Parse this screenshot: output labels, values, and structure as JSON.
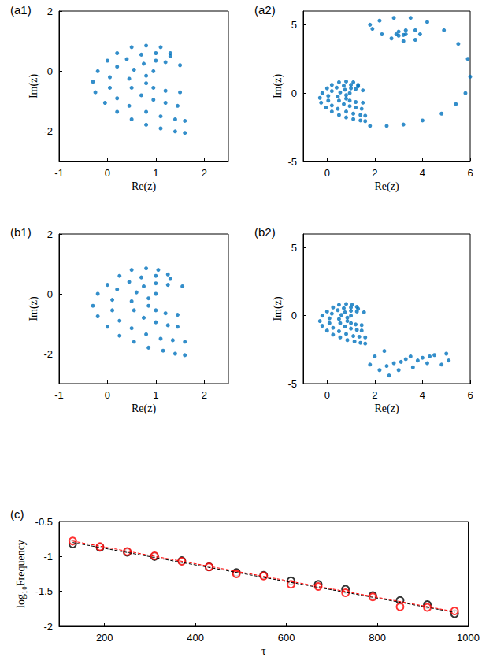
{
  "chart_data": [
    {
      "type": "scatter",
      "title": "(a1)",
      "x_label": "Re(z)",
      "y_label": "Im(z)",
      "xlim": [
        -1,
        2.5
      ],
      "ylim": [
        -3,
        2
      ],
      "xticks": [
        -1,
        0,
        1,
        2
      ],
      "yticks": [
        -2,
        0,
        2
      ],
      "series": [
        {
          "color": "#0072bd",
          "marker": "circle",
          "x": [
            1.3,
            1.1,
            0.8,
            0.5,
            0.2,
            0,
            -0.2,
            -0.3,
            -0.25,
            -0.05,
            0.2,
            0.5,
            0.8,
            1.1,
            1.4,
            1.6,
            1.5,
            1.3,
            1.0,
            0.7,
            0.4,
            0.2,
            0.05,
            0.05,
            0.2,
            0.45,
            0.8,
            1.1,
            1.4,
            1.6,
            1.2,
            1.0,
            0.75,
            0.55,
            0.45,
            0.5,
            0.7,
            0.95,
            1.2,
            1.45,
            0.95,
            0.8,
            0.8,
            0.95,
            1.2,
            1.5
          ],
          "values": [
            0.6,
            0.8,
            0.85,
            0.8,
            0.6,
            0.35,
            0,
            -0.35,
            -0.7,
            -1.05,
            -1.35,
            -1.6,
            -1.78,
            -1.9,
            -2.0,
            -2.05,
            0.2,
            0.5,
            0.6,
            0.55,
            0.4,
            0.15,
            -0.2,
            -0.55,
            -0.9,
            -1.15,
            -1.35,
            -1.5,
            -1.6,
            -1.65,
            0.3,
            0.35,
            0.25,
            0.05,
            -0.25,
            -0.55,
            -0.8,
            -0.95,
            -1.05,
            -1.15,
            0.0,
            -0.15,
            -0.4,
            -0.55,
            -0.65,
            -0.7
          ]
        }
      ]
    },
    {
      "type": "scatter",
      "title": "(a2)",
      "x_label": "Re(z)",
      "y_label": "Im(z)",
      "xlim": [
        -1,
        6
      ],
      "ylim": [
        -5,
        6
      ],
      "xticks": [
        0,
        2,
        4,
        6
      ],
      "yticks": [
        -5,
        0,
        5
      ],
      "series": [
        {
          "color": "#0072bd",
          "marker": "circle",
          "x": [
            1.3,
            1.1,
            0.8,
            0.5,
            0.2,
            0,
            -0.2,
            -0.3,
            -0.25,
            -0.05,
            0.2,
            0.5,
            0.8,
            1.1,
            1.4,
            1.6,
            1.5,
            1.3,
            1.0,
            0.7,
            0.4,
            0.2,
            0.05,
            0.05,
            0.2,
            0.45,
            0.8,
            1.1,
            1.4,
            1.6,
            1.2,
            1.0,
            0.75,
            0.55,
            0.45,
            0.5,
            0.7,
            0.95,
            1.2,
            1.45,
            0.95,
            0.8,
            0.8,
            0.95,
            1.2,
            1.5
          ],
          "values": [
            0.6,
            0.8,
            0.85,
            0.8,
            0.6,
            0.35,
            0,
            -0.35,
            -0.7,
            -1.05,
            -1.35,
            -1.6,
            -1.78,
            -1.9,
            -2.0,
            -2.05,
            0.2,
            0.5,
            0.6,
            0.55,
            0.4,
            0.15,
            -0.2,
            -0.55,
            -0.9,
            -1.15,
            -1.35,
            -1.5,
            -1.6,
            -1.65,
            0.3,
            0.35,
            0.25,
            0.05,
            -0.25,
            -0.55,
            -0.8,
            -0.95,
            -1.05,
            -1.15,
            0.0,
            -0.15,
            -0.4,
            -0.55,
            -0.65,
            -0.7
          ]
        },
        {
          "color": "#0072bd",
          "marker": "circle",
          "x": [
            1.8,
            2.5,
            3.2,
            4.0,
            4.8,
            5.4,
            5.8,
            6.0,
            5.9,
            5.5,
            4.9,
            4.2,
            3.5,
            2.8,
            2.2,
            1.8,
            1.9,
            2.3,
            2.7,
            3.2,
            3.7,
            3.9,
            3.7,
            3.3,
            3.0,
            2.9,
            3.0,
            3.2,
            3.3
          ],
          "values": [
            -2.4,
            -2.4,
            -2.3,
            -2.0,
            -1.5,
            -0.8,
            0.0,
            1.2,
            2.5,
            3.6,
            4.6,
            5.2,
            5.5,
            5.5,
            5.3,
            5.0,
            4.7,
            4.3,
            4.0,
            3.8,
            3.9,
            4.3,
            4.6,
            4.6,
            4.5,
            4.3,
            4.2,
            4.25,
            4.3
          ]
        }
      ]
    },
    {
      "type": "scatter",
      "title": "(b1)",
      "x_label": "Re(z)",
      "y_label": "Im(z)",
      "xlim": [
        -1,
        2.5
      ],
      "ylim": [
        -3,
        2
      ],
      "xticks": [
        -1,
        0,
        1,
        2
      ],
      "yticks": [
        -2,
        0,
        2
      ],
      "series": [
        {
          "color": "#0072bd",
          "marker": "circle",
          "x": [
            1.25,
            1.05,
            0.8,
            0.5,
            0.25,
            0.0,
            -0.2,
            -0.3,
            -0.2,
            0.0,
            0.25,
            0.55,
            0.85,
            1.15,
            1.4,
            1.6,
            1.55,
            1.3,
            1.0,
            0.7,
            0.45,
            0.2,
            0.1,
            0.1,
            0.25,
            0.5,
            0.8,
            1.1,
            1.35,
            1.6,
            1.25,
            1.0,
            0.75,
            0.6,
            0.5,
            0.55,
            0.75,
            1.0,
            1.25,
            1.45,
            1.0,
            0.85,
            0.85,
            1.0,
            1.2,
            1.45
          ],
          "values": [
            0.65,
            0.8,
            0.85,
            0.8,
            0.6,
            0.3,
            0,
            -0.4,
            -0.75,
            -1.1,
            -1.4,
            -1.6,
            -1.8,
            -1.9,
            -2.0,
            -2.05,
            0.25,
            0.5,
            0.6,
            0.55,
            0.4,
            0.15,
            -0.2,
            -0.55,
            -0.9,
            -1.15,
            -1.35,
            -1.5,
            -1.55,
            -1.6,
            0.3,
            0.35,
            0.25,
            0.05,
            -0.25,
            -0.55,
            -0.8,
            -0.95,
            -1.05,
            -1.1,
            0.0,
            -0.15,
            -0.4,
            -0.55,
            -0.65,
            -0.7
          ]
        }
      ]
    },
    {
      "type": "scatter",
      "title": "(b2)",
      "x_label": "Re(z)",
      "y_label": "Im(z)",
      "xlim": [
        -1,
        6
      ],
      "ylim": [
        -5,
        6
      ],
      "xticks": [
        0,
        2,
        4,
        6
      ],
      "yticks": [
        -5,
        0,
        5
      ],
      "series": [
        {
          "color": "#0072bd",
          "marker": "circle",
          "x": [
            1.25,
            1.05,
            0.8,
            0.5,
            0.25,
            0.0,
            -0.2,
            -0.3,
            -0.2,
            0.0,
            0.25,
            0.55,
            0.85,
            1.15,
            1.4,
            1.6,
            1.55,
            1.3,
            1.0,
            0.7,
            0.45,
            0.2,
            0.1,
            0.1,
            0.25,
            0.5,
            0.8,
            1.1,
            1.35,
            1.6,
            1.25,
            1.0,
            0.75,
            0.6,
            0.5,
            0.55,
            0.75,
            1.0,
            1.25,
            1.45,
            1.0,
            0.85,
            0.85,
            1.0,
            1.2,
            1.45
          ],
          "values": [
            0.65,
            0.8,
            0.85,
            0.8,
            0.6,
            0.3,
            0,
            -0.4,
            -0.75,
            -1.1,
            -1.4,
            -1.6,
            -1.8,
            -1.9,
            -2.0,
            -2.05,
            0.25,
            0.5,
            0.6,
            0.55,
            0.4,
            0.15,
            -0.2,
            -0.55,
            -0.9,
            -1.15,
            -1.35,
            -1.5,
            -1.55,
            -1.6,
            0.3,
            0.35,
            0.25,
            0.05,
            -0.25,
            -0.55,
            -0.8,
            -0.95,
            -1.05,
            -1.1,
            0.0,
            -0.15,
            -0.4,
            -0.55,
            -0.65,
            -0.7
          ]
        },
        {
          "color": "#0072bd",
          "marker": "circle",
          "x": [
            1.8,
            2.0,
            2.2,
            2.4,
            2.5,
            2.6,
            2.8,
            3.0,
            3.1,
            3.3,
            3.5,
            3.6,
            3.8,
            4.0,
            4.2,
            4.3,
            4.5,
            4.8,
            5.0,
            5.1
          ],
          "values": [
            -3.6,
            -3.0,
            -4.0,
            -2.6,
            -3.7,
            -4.4,
            -3.5,
            -4.0,
            -3.4,
            -3.2,
            -3.0,
            -3.8,
            -3.3,
            -3.1,
            -3.5,
            -3.0,
            -2.9,
            -3.6,
            -2.8,
            -3.3
          ]
        }
      ]
    },
    {
      "type": "scatter",
      "title": "(c)",
      "x_label": "τ",
      "y_label": "log₁₀Frequency",
      "xlim": [
        100,
        1000
      ],
      "ylim": [
        -2,
        -0.5
      ],
      "xticks": [
        200,
        400,
        600,
        800,
        1000
      ],
      "yticks": [
        -2,
        -1.5,
        -1,
        -0.5
      ],
      "series": [
        {
          "color": "#000000",
          "marker": "open_circle",
          "x": [
            130,
            190,
            250,
            310,
            370,
            430,
            490,
            550,
            610,
            670,
            730,
            790,
            850,
            910,
            970
          ],
          "values": [
            -0.82,
            -0.87,
            -0.94,
            -1.0,
            -1.06,
            -1.15,
            -1.23,
            -1.27,
            -1.35,
            -1.4,
            -1.47,
            -1.56,
            -1.63,
            -1.69,
            -1.82
          ]
        },
        {
          "color": "#ff0000",
          "marker": "open_circle",
          "x": [
            130,
            190,
            250,
            310,
            370,
            430,
            490,
            550,
            610,
            670,
            730,
            790,
            850,
            910,
            970
          ],
          "values": [
            -0.78,
            -0.86,
            -0.93,
            -0.99,
            -1.07,
            -1.15,
            -1.25,
            -1.28,
            -1.4,
            -1.43,
            -1.52,
            -1.58,
            -1.72,
            -1.73,
            -1.78
          ]
        },
        {
          "type": "line",
          "color": "#000000",
          "line_style": "dashed",
          "x": [
            130,
            970
          ],
          "values": [
            -0.8,
            -1.8
          ]
        },
        {
          "type": "line",
          "color": "#ff0000",
          "line_style": "dashed",
          "x": [
            130,
            970
          ],
          "values": [
            -0.78,
            -1.79
          ]
        }
      ]
    }
  ]
}
